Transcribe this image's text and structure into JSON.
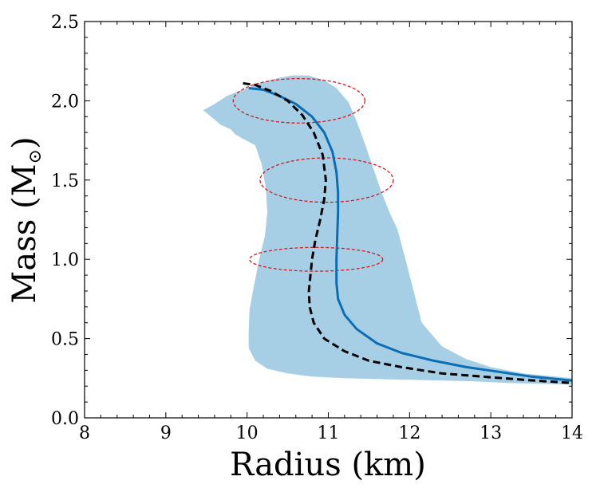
{
  "chart_data": {
    "type": "line",
    "title": "",
    "xlabel": "Radius (km)",
    "ylabel_main": "Mass (M",
    "ylabel_symbol": "⊙",
    "ylabel_close": ")",
    "xlim": [
      8,
      14
    ],
    "ylim": [
      0.0,
      2.5
    ],
    "xticks": [
      8,
      9,
      10,
      11,
      12,
      13,
      14
    ],
    "yticks": [
      0.0,
      0.5,
      1.0,
      1.5,
      2.0,
      2.5
    ],
    "xtick_labels": [
      "8",
      "9",
      "10",
      "11",
      "12",
      "13",
      "14"
    ],
    "ytick_labels": [
      "0.0",
      "0.5",
      "1.0",
      "1.5",
      "2.0",
      "2.5"
    ],
    "grid": false,
    "colors": {
      "band": "#a6cfe6",
      "solid": "#0b6eb5",
      "dashed": "#000000",
      "ellipse": "#d7191c"
    },
    "band": {
      "name": "uncertainty band",
      "points": [
        [
          9.46,
          1.94
        ],
        [
          9.6,
          1.98
        ],
        [
          9.75,
          2.03
        ],
        [
          9.95,
          2.07
        ],
        [
          10.15,
          2.11
        ],
        [
          10.35,
          2.14
        ],
        [
          10.55,
          2.16
        ],
        [
          10.75,
          2.16
        ],
        [
          10.95,
          2.13
        ],
        [
          11.1,
          2.08
        ],
        [
          11.25,
          1.99
        ],
        [
          11.35,
          1.87
        ],
        [
          11.45,
          1.73
        ],
        [
          11.55,
          1.58
        ],
        [
          11.65,
          1.43
        ],
        [
          11.75,
          1.3
        ],
        [
          11.85,
          1.19
        ],
        [
          11.95,
          1.0
        ],
        [
          12.05,
          0.8
        ],
        [
          12.15,
          0.6
        ],
        [
          12.4,
          0.45
        ],
        [
          12.7,
          0.37
        ],
        [
          13.0,
          0.32
        ],
        [
          13.4,
          0.28
        ],
        [
          13.8,
          0.26
        ],
        [
          14.0,
          0.25
        ],
        [
          14.0,
          0.21
        ],
        [
          13.6,
          0.215
        ],
        [
          13.2,
          0.22
        ],
        [
          12.8,
          0.23
        ],
        [
          12.4,
          0.235
        ],
        [
          12.0,
          0.24
        ],
        [
          11.6,
          0.245
        ],
        [
          11.2,
          0.25
        ],
        [
          10.8,
          0.26
        ],
        [
          10.5,
          0.28
        ],
        [
          10.25,
          0.31
        ],
        [
          10.1,
          0.36
        ],
        [
          10.02,
          0.44
        ],
        [
          10.02,
          0.55
        ],
        [
          10.03,
          0.68
        ],
        [
          10.08,
          0.82
        ],
        [
          10.15,
          1.0
        ],
        [
          10.22,
          1.15
        ],
        [
          10.25,
          1.3
        ],
        [
          10.23,
          1.45
        ],
        [
          10.18,
          1.6
        ],
        [
          10.1,
          1.72
        ],
        [
          9.95,
          1.76
        ],
        [
          9.85,
          1.79
        ],
        [
          9.8,
          1.82
        ],
        [
          9.67,
          1.85
        ],
        [
          9.58,
          1.89
        ],
        [
          9.46,
          1.94
        ]
      ]
    },
    "series": [
      {
        "name": "solid curve",
        "style": "solid",
        "points": [
          [
            10.02,
            2.08
          ],
          [
            10.2,
            2.07
          ],
          [
            10.4,
            2.03
          ],
          [
            10.6,
            1.98
          ],
          [
            10.8,
            1.9
          ],
          [
            10.95,
            1.8
          ],
          [
            11.05,
            1.68
          ],
          [
            11.1,
            1.55
          ],
          [
            11.12,
            1.42
          ],
          [
            11.12,
            1.3
          ],
          [
            11.11,
            1.15
          ],
          [
            11.1,
            1.0
          ],
          [
            11.1,
            0.85
          ],
          [
            11.12,
            0.75
          ],
          [
            11.2,
            0.65
          ],
          [
            11.35,
            0.56
          ],
          [
            11.6,
            0.47
          ],
          [
            11.9,
            0.41
          ],
          [
            12.3,
            0.36
          ],
          [
            12.7,
            0.32
          ],
          [
            13.1,
            0.29
          ],
          [
            13.5,
            0.26
          ],
          [
            14.0,
            0.235
          ]
        ]
      },
      {
        "name": "dashed curve",
        "style": "dashed",
        "points": [
          [
            9.95,
            2.11
          ],
          [
            10.1,
            2.1
          ],
          [
            10.3,
            2.06
          ],
          [
            10.5,
            2.0
          ],
          [
            10.68,
            1.91
          ],
          [
            10.82,
            1.8
          ],
          [
            10.93,
            1.66
          ],
          [
            10.97,
            1.5
          ],
          [
            10.95,
            1.38
          ],
          [
            10.9,
            1.25
          ],
          [
            10.84,
            1.12
          ],
          [
            10.8,
            1.0
          ],
          [
            10.78,
            0.9
          ],
          [
            10.76,
            0.8
          ],
          [
            10.77,
            0.7
          ],
          [
            10.82,
            0.6
          ],
          [
            10.95,
            0.5
          ],
          [
            11.2,
            0.42
          ],
          [
            11.5,
            0.36
          ],
          [
            11.9,
            0.32
          ],
          [
            12.4,
            0.28
          ],
          [
            12.9,
            0.26
          ],
          [
            13.4,
            0.24
          ],
          [
            14.0,
            0.22
          ]
        ]
      }
    ],
    "ellipses": [
      {
        "name": "constraint at 2.0",
        "cx": 10.64,
        "cy": 2.0,
        "rx": 0.81,
        "ry": 0.14
      },
      {
        "name": "constraint at 1.5",
        "cx": 10.98,
        "cy": 1.5,
        "rx": 0.82,
        "ry": 0.14
      },
      {
        "name": "constraint at 1.0",
        "cx": 10.85,
        "cy": 1.0,
        "rx": 0.82,
        "ry": 0.075
      }
    ]
  }
}
